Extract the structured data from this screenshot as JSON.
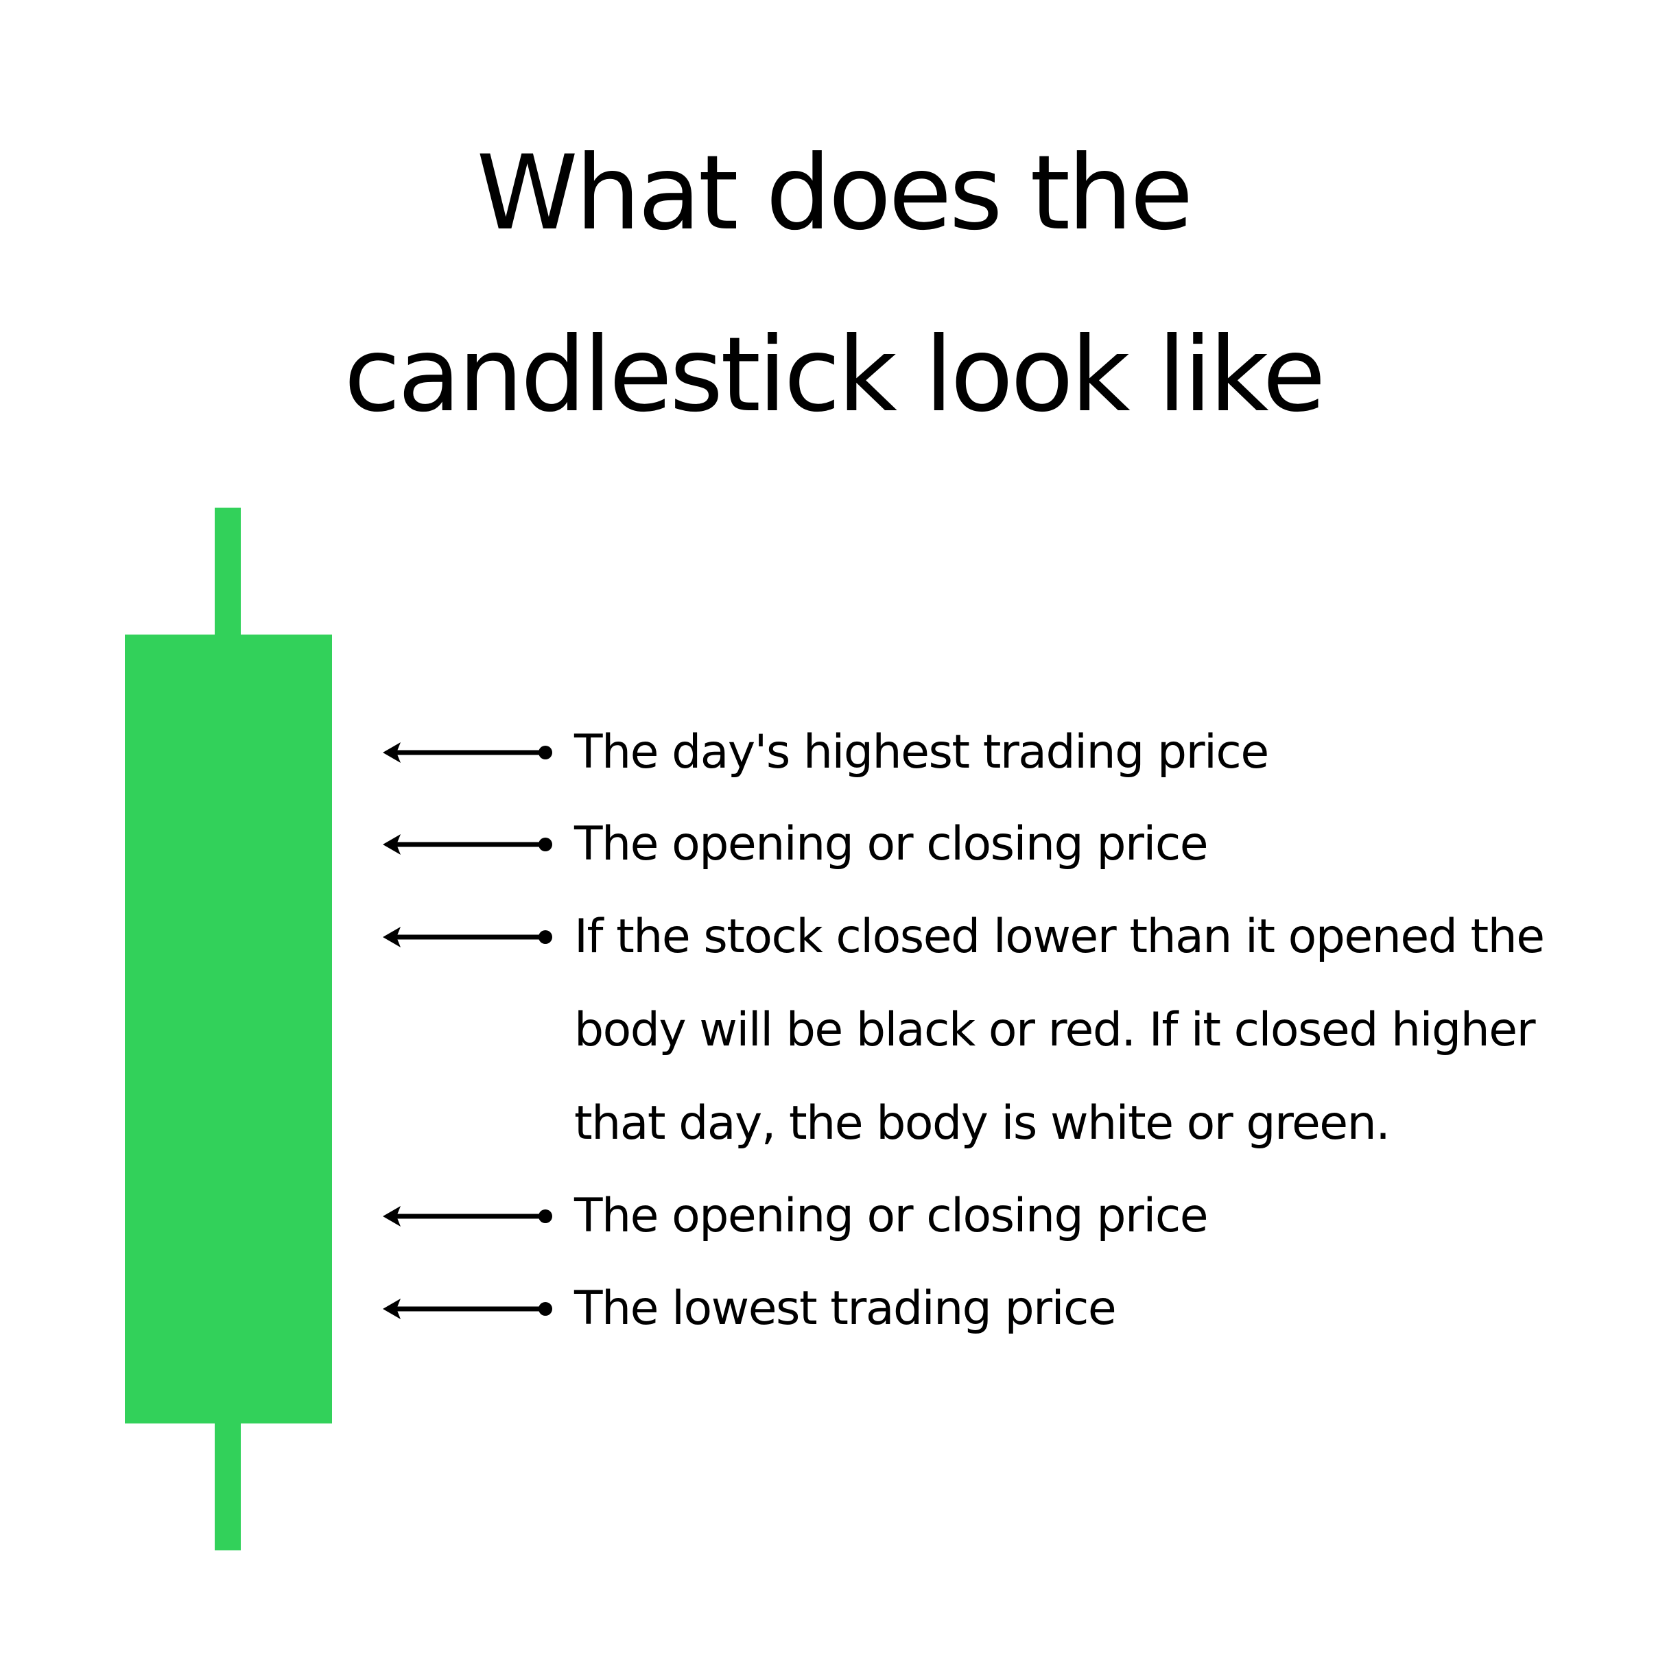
{
  "title": {
    "line1": "What does the",
    "line2": "candlestick look like"
  },
  "colors": {
    "candle": "#32D15A",
    "text": "#000000",
    "background": "#FFFFFF"
  },
  "annotations": [
    {
      "text": "The day's highest trading price"
    },
    {
      "text": "The opening or closing price"
    },
    {
      "lines": [
        "If the stock closed lower than it opened the",
        "body will be black or red. If it closed higher",
        "that day, the body is white or green."
      ]
    },
    {
      "text": "The opening or closing price"
    },
    {
      "text": "The lowest trading price"
    }
  ]
}
